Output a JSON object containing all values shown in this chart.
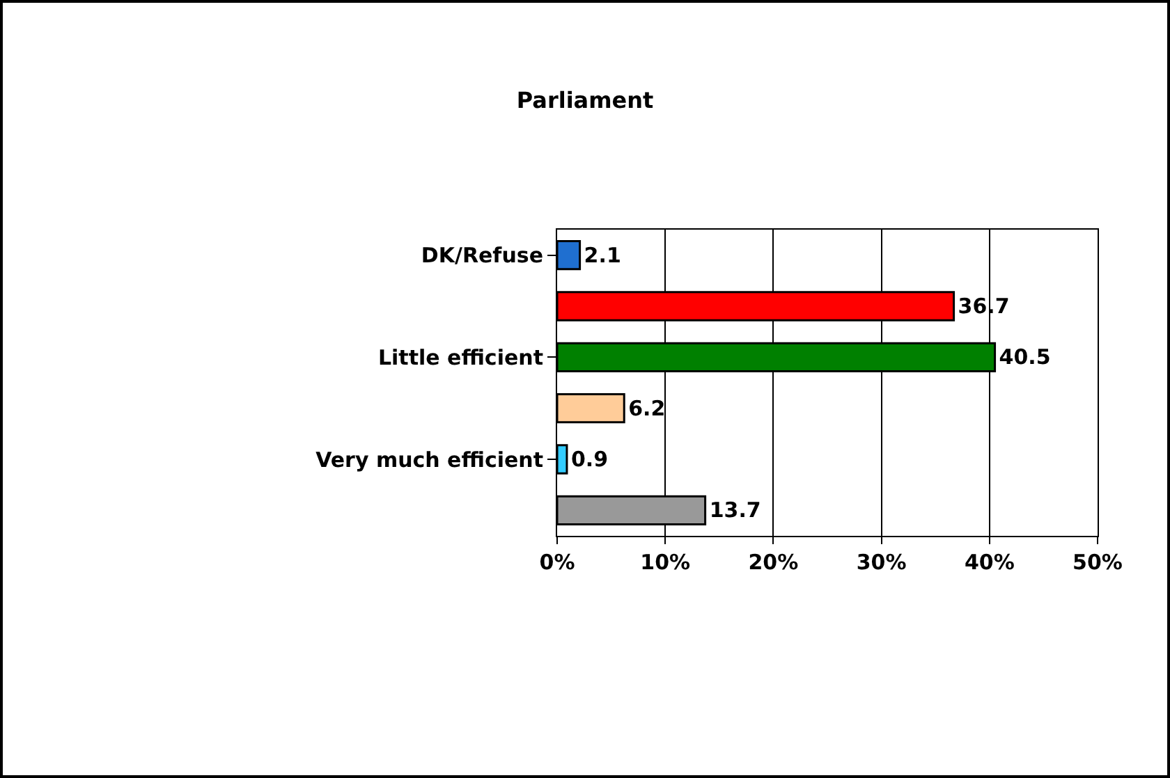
{
  "chart_data": {
    "type": "bar",
    "title": "Parliament",
    "orientation": "horizontal",
    "categories": [
      "DK/Refuse",
      null,
      "Little efficient",
      null,
      "Very much efficient",
      null
    ],
    "values": [
      2.1,
      36.7,
      40.5,
      6.2,
      0.9,
      13.7
    ],
    "colors": [
      "#1f6fd0",
      "#ff0000",
      "#008000",
      "#ffcc99",
      "#33ccff",
      "#999999"
    ],
    "xlim": [
      0,
      50
    ],
    "xticks": [
      {
        "value": 0,
        "label": "0%"
      },
      {
        "value": 10,
        "label": "10%"
      },
      {
        "value": 20,
        "label": "20%"
      },
      {
        "value": 30,
        "label": "30%"
      },
      {
        "value": 40,
        "label": "40%"
      },
      {
        "value": 50,
        "label": "50%"
      }
    ],
    "grid": "x",
    "data_labels": true
  }
}
